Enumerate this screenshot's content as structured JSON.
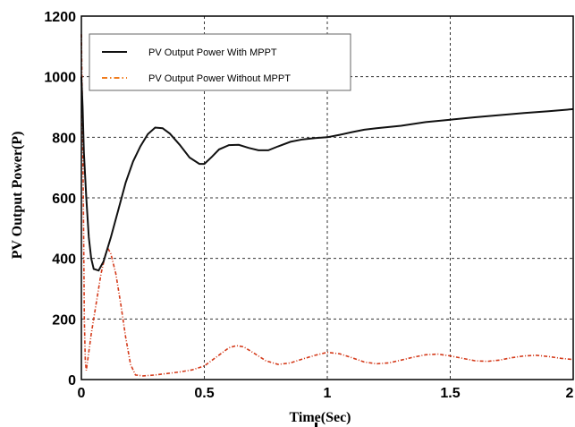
{
  "chart_data": {
    "type": "line",
    "xlabel": "Time(Sec)",
    "ylabel": "PV Output Power(P)",
    "xlim": [
      0,
      2
    ],
    "ylim": [
      0,
      1200
    ],
    "x_ticks": [
      0,
      0.5,
      1,
      1.5,
      2
    ],
    "x_tick_labels": [
      "0",
      "0.5",
      "1",
      "1.5",
      "2"
    ],
    "y_ticks": [
      0,
      200,
      400,
      600,
      800,
      1000,
      1200
    ],
    "y_tick_labels": [
      "0",
      "200",
      "400",
      "600",
      "800",
      "1000",
      "1200"
    ],
    "grid": true,
    "legend_position": "top-left",
    "series": [
      {
        "name": "PV Output  Power  With MPPT",
        "color": "#111111",
        "style": "solid",
        "points": [
          [
            0,
            1000
          ],
          [
            0.005,
            900
          ],
          [
            0.01,
            750
          ],
          [
            0.02,
            600
          ],
          [
            0.03,
            470
          ],
          [
            0.04,
            400
          ],
          [
            0.05,
            365
          ],
          [
            0.07,
            360
          ],
          [
            0.09,
            390
          ],
          [
            0.12,
            470
          ],
          [
            0.15,
            560
          ],
          [
            0.18,
            650
          ],
          [
            0.21,
            720
          ],
          [
            0.24,
            770
          ],
          [
            0.27,
            810
          ],
          [
            0.3,
            832
          ],
          [
            0.33,
            830
          ],
          [
            0.36,
            812
          ],
          [
            0.4,
            775
          ],
          [
            0.44,
            733
          ],
          [
            0.48,
            712
          ],
          [
            0.5,
            712
          ],
          [
            0.53,
            735
          ],
          [
            0.56,
            760
          ],
          [
            0.6,
            774
          ],
          [
            0.64,
            775
          ],
          [
            0.68,
            765
          ],
          [
            0.72,
            757
          ],
          [
            0.76,
            757
          ],
          [
            0.8,
            770
          ],
          [
            0.85,
            785
          ],
          [
            0.9,
            793
          ],
          [
            0.95,
            797
          ],
          [
            1.0,
            800
          ],
          [
            1.05,
            808
          ],
          [
            1.1,
            817
          ],
          [
            1.15,
            825
          ],
          [
            1.2,
            830
          ],
          [
            1.3,
            838
          ],
          [
            1.4,
            850
          ],
          [
            1.5,
            858
          ],
          [
            1.6,
            866
          ],
          [
            1.7,
            873
          ],
          [
            1.8,
            880
          ],
          [
            1.9,
            886
          ],
          [
            2.0,
            893
          ]
        ]
      },
      {
        "name": "PV Output  Power   Without MPPT",
        "color": "#d43a1a",
        "style": "dash-dot",
        "points": [
          [
            0,
            1140
          ],
          [
            0.004,
            900
          ],
          [
            0.008,
            600
          ],
          [
            0.012,
            200
          ],
          [
            0.016,
            60
          ],
          [
            0.02,
            30
          ],
          [
            0.04,
            150
          ],
          [
            0.06,
            250
          ],
          [
            0.08,
            350
          ],
          [
            0.1,
            420
          ],
          [
            0.11,
            430
          ],
          [
            0.12,
            415
          ],
          [
            0.14,
            350
          ],
          [
            0.16,
            250
          ],
          [
            0.18,
            140
          ],
          [
            0.2,
            50
          ],
          [
            0.22,
            15
          ],
          [
            0.25,
            12
          ],
          [
            0.3,
            15
          ],
          [
            0.35,
            20
          ],
          [
            0.4,
            25
          ],
          [
            0.45,
            32
          ],
          [
            0.5,
            45
          ],
          [
            0.55,
            75
          ],
          [
            0.6,
            105
          ],
          [
            0.63,
            112
          ],
          [
            0.66,
            108
          ],
          [
            0.7,
            88
          ],
          [
            0.75,
            62
          ],
          [
            0.8,
            50
          ],
          [
            0.85,
            55
          ],
          [
            0.9,
            68
          ],
          [
            0.95,
            80
          ],
          [
            1.0,
            90
          ],
          [
            1.05,
            85
          ],
          [
            1.1,
            72
          ],
          [
            1.15,
            58
          ],
          [
            1.2,
            52
          ],
          [
            1.25,
            55
          ],
          [
            1.3,
            64
          ],
          [
            1.35,
            74
          ],
          [
            1.4,
            82
          ],
          [
            1.45,
            84
          ],
          [
            1.5,
            78
          ],
          [
            1.55,
            70
          ],
          [
            1.6,
            62
          ],
          [
            1.65,
            60
          ],
          [
            1.7,
            64
          ],
          [
            1.75,
            72
          ],
          [
            1.8,
            78
          ],
          [
            1.85,
            80
          ],
          [
            1.9,
            76
          ],
          [
            1.95,
            70
          ],
          [
            2.0,
            66
          ]
        ]
      }
    ]
  }
}
